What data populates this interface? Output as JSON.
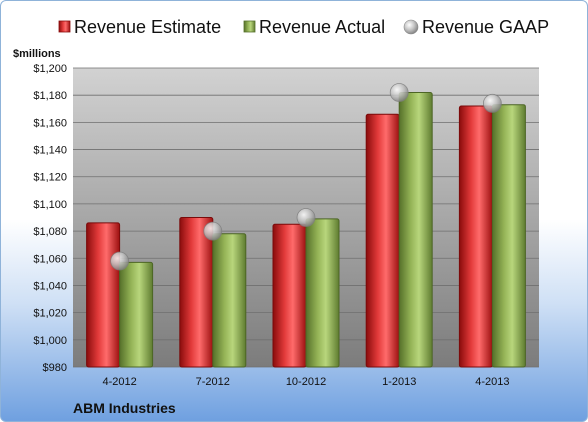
{
  "chart_data": {
    "type": "bar",
    "title": "",
    "ylabel": "$millions",
    "xlabel": "",
    "company": "ABM Industries",
    "categories": [
      "4-2012",
      "7-2012",
      "10-2012",
      "1-2013",
      "4-2013"
    ],
    "series": [
      {
        "name": "Revenue Estimate",
        "type": "bar",
        "color": "#d42b2b",
        "values": [
          1086,
          1090,
          1085,
          1166,
          1172
        ]
      },
      {
        "name": "Revenue Actual",
        "type": "bar",
        "color": "#8aa84a",
        "values": [
          1057,
          1078,
          1089,
          1182,
          1173
        ]
      },
      {
        "name": "Revenue GAAP",
        "type": "marker",
        "color": "#b8b8b8",
        "values": [
          1058,
          1080,
          1090,
          1182,
          1174
        ]
      }
    ],
    "ylim": [
      980,
      1200
    ],
    "yticks": [
      "$980",
      "$1,000",
      "$1,020",
      "$1,040",
      "$1,060",
      "$1,080",
      "$1,100",
      "$1,120",
      "$1,140",
      "$1,160",
      "$1,180",
      "$1,200"
    ],
    "ytick_values": [
      980,
      1000,
      1020,
      1040,
      1060,
      1080,
      1100,
      1120,
      1140,
      1160,
      1180,
      1200
    ],
    "grid": true,
    "legend_position": "top"
  }
}
